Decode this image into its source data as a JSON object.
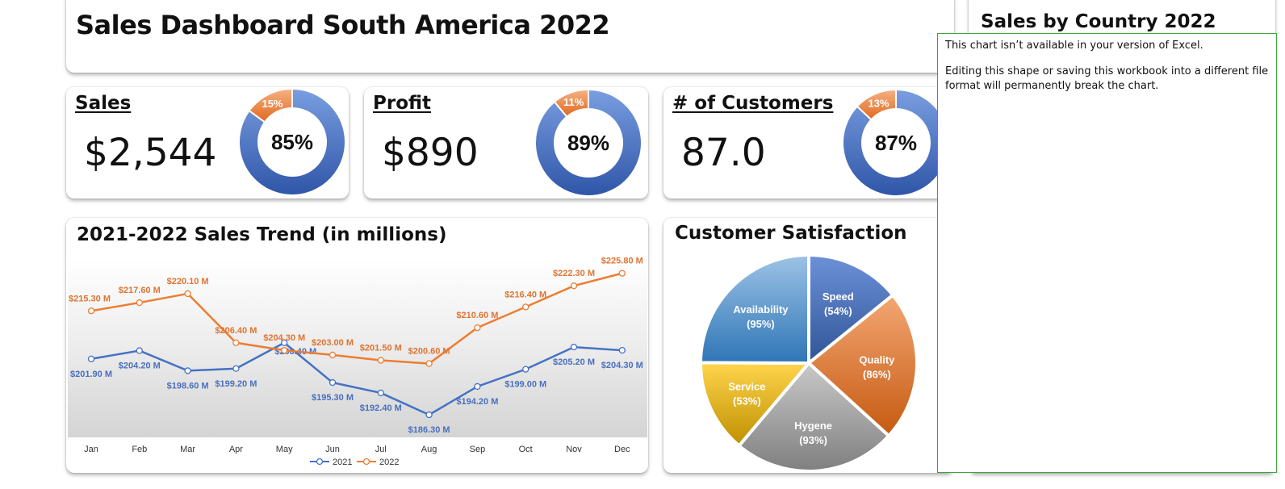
{
  "dashboard": {
    "title": "Sales Dashboard South America 2022"
  },
  "kpis": [
    {
      "label": "Sales",
      "value": "$2,544",
      "achieved": 85,
      "remaining": 15,
      "achieved_label": "85%",
      "remaining_label": "15%"
    },
    {
      "label": "Profit",
      "value": "$890",
      "achieved": 89,
      "remaining": 11,
      "achieved_label": "89%",
      "remaining_label": "11%"
    },
    {
      "label": "# of Customers",
      "value": "87.0",
      "achieved": 87,
      "remaining": 13,
      "achieved_label": "87%",
      "remaining_label": "13%"
    }
  ],
  "colors": {
    "blue": "#4472c4",
    "orange": "#ed7d31",
    "notice_border": "#3aa63a"
  },
  "country": {
    "title": "Sales by Country 2022"
  },
  "notice": {
    "line1": "This chart isn’t available in your version of Excel.",
    "line2": "Editing this shape or saving this workbook into a different file format will permanently break the chart."
  },
  "chart_data": [
    {
      "type": "line",
      "title": "2021-2022 Sales Trend (in millions)",
      "categories": [
        "Jan",
        "Feb",
        "Mar",
        "Apr",
        "May",
        "Jun",
        "Jul",
        "Aug",
        "Sep",
        "Oct",
        "Nov",
        "Dec"
      ],
      "ylim": [
        180,
        230
      ],
      "series": [
        {
          "name": "2021",
          "color": "#4472c4",
          "values": [
            201.9,
            204.2,
            198.6,
            199.2,
            206.4,
            195.3,
            192.4,
            186.3,
            194.2,
            199.0,
            205.2,
            204.3
          ],
          "labels": [
            "$201.90 M",
            "$204.20 M",
            "$198.60 M",
            "$199.20 M",
            "$206.40 M",
            "$195.30 M",
            "$192.40 M",
            "$186.30 M",
            "$194.20 M",
            "$199.00 M",
            "$205.20 M",
            "$204.30 M"
          ]
        },
        {
          "name": "2022",
          "color": "#ed7d31",
          "values": [
            215.3,
            217.6,
            220.1,
            206.4,
            204.3,
            203.0,
            201.5,
            200.6,
            210.6,
            216.4,
            222.3,
            225.8
          ],
          "labels": [
            "$215.30 M",
            "$217.60 M",
            "$220.10 M",
            "$206.40 M",
            "$204.30 M",
            "$203.00 M",
            "$201.50 M",
            "$200.60 M",
            "$210.60 M",
            "$216.40 M",
            "$222.30 M",
            "$225.80 M"
          ]
        }
      ],
      "legend": "bottom"
    },
    {
      "type": "pie",
      "title": "Customer Satisfaction",
      "slices": [
        {
          "name": "Speed",
          "value": 54,
          "label": "(54%)",
          "color": "#4472c4"
        },
        {
          "name": "Quality",
          "value": 86,
          "label": "(86%)",
          "color": "#ed7d31"
        },
        {
          "name": "Hygene",
          "value": 93,
          "label": "(93%)",
          "color": "#a5a5a5"
        },
        {
          "name": "Service",
          "value": 53,
          "label": "(53%)",
          "color": "#ffc000"
        },
        {
          "name": "Availability",
          "value": 95,
          "label": "(95%)",
          "color": "#5b9bd5"
        }
      ]
    }
  ]
}
